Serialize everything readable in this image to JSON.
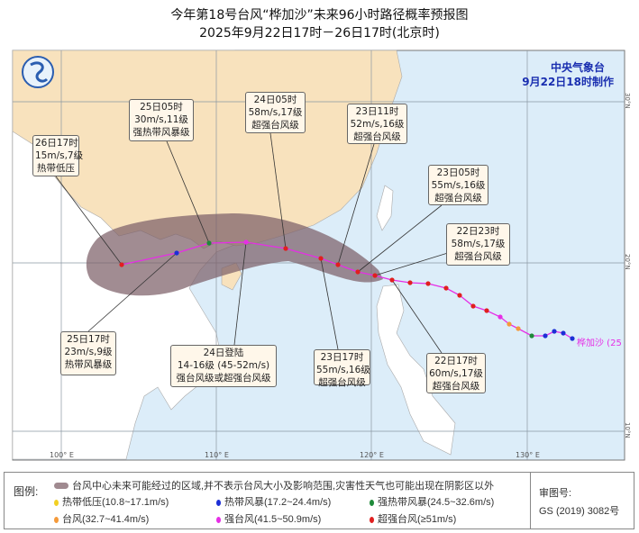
{
  "title": {
    "line1": "今年第18号台风“桦加沙”未来96小时路径概率预报图",
    "line2": "2025年9月22日17时－26日17时(北京时)"
  },
  "agency": {
    "name": "中央气象台",
    "made": "9月22日18时制作"
  },
  "typhoon_label": "桦加沙 (25",
  "axes": {
    "lon": [
      "100° E",
      "110° E",
      "120° E",
      "130° E"
    ],
    "lat": [
      "30°N",
      "20°N",
      "10°N"
    ]
  },
  "annotations": [
    {
      "time": "26日17时",
      "wind": "15m/s,7级",
      "grade": "热带低压"
    },
    {
      "time": "25日05时",
      "wind": "30m/s,11级",
      "grade": "强热带风暴级"
    },
    {
      "time": "24日05时",
      "wind": "58m/s,17级",
      "grade": "超强台风级"
    },
    {
      "time": "23日11时",
      "wind": "52m/s,16级",
      "grade": "超强台风级"
    },
    {
      "time": "23日05时",
      "wind": "55m/s,16级",
      "grade": "超强台风级"
    },
    {
      "time": "22日23时",
      "wind": "58m/s,17级",
      "grade": "超强台风级"
    },
    {
      "time": "22日17时",
      "wind": "60m/s,17级",
      "grade": "超强台风级"
    },
    {
      "time": "23日17时",
      "wind": "55m/s,16级",
      "grade": "超强台风级"
    },
    {
      "time": "24日登陆",
      "wind": "14-16级  (45-52m/s)",
      "grade": "强台风级或超强台风级"
    },
    {
      "time": "25日17时",
      "wind": "23m/s,9级",
      "grade": "热带风暴级"
    }
  ],
  "legend": {
    "label": "图例:",
    "cone_text": "台风中心未来可能经过的区域,并不表示台风大小及影响范围,灾害性天气也可能出现在阴影区以外",
    "items": [
      {
        "text": "热带低压(10.8~17.1m/s)",
        "color": "#f2d023"
      },
      {
        "text": "热带风暴(17.2~24.4m/s)",
        "color": "#1c2fd6"
      },
      {
        "text": "强热带风暴(24.5~32.6m/s)",
        "color": "#1f8a3a"
      },
      {
        "text": "台风(32.7~41.4m/s)",
        "color": "#f59a3a"
      },
      {
        "text": "强台风(41.5~50.9m/s)",
        "color": "#e62ee6"
      },
      {
        "text": "超强台风(≥51m/s)",
        "color": "#e01f1f"
      }
    ],
    "review_label": "审图号:",
    "review_no": "GS (2019) 3082号"
  },
  "colors": {
    "ocean": "#dcedf9",
    "china": "#f8e2bd",
    "land": "#ffffff",
    "cone": "#8a6d74",
    "track": "#e62ee6"
  }
}
